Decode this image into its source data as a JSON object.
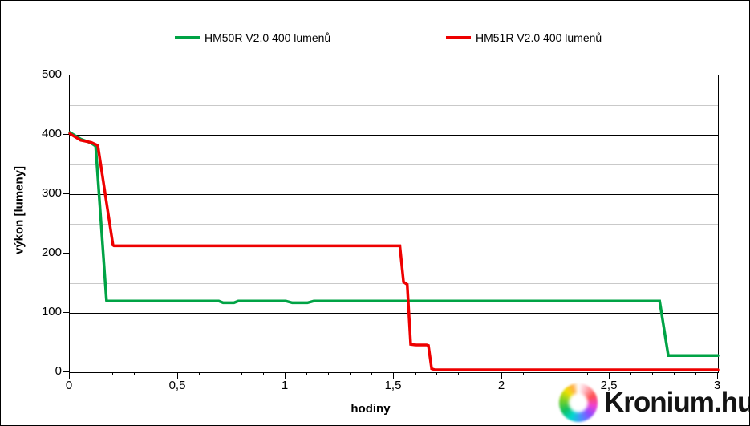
{
  "legend": {
    "items": [
      {
        "label": "HM50R V2.0 400 lumenů",
        "color": "#00a345"
      },
      {
        "label": "HM51R V2.0 400 lumenů",
        "color": "#ee0000"
      }
    ]
  },
  "watermark": {
    "text": "Kronium.hu"
  },
  "chart_data": {
    "type": "line",
    "title": "",
    "xlabel": "hodiny",
    "ylabel": "výkon [lumeny]",
    "xlim": [
      0,
      3
    ],
    "ylim": [
      0,
      500
    ],
    "grid": {
      "major_color": "#000000",
      "minor_color": "#c9c9c9",
      "vertical": false
    },
    "legend_position": "top",
    "x_ticks_major": {
      "values": [
        0,
        0.5,
        1,
        1.5,
        2,
        2.5,
        3
      ],
      "labels": [
        "0",
        "0,5",
        "1",
        "1,5",
        "2",
        "2,5",
        "3"
      ]
    },
    "x_minor_step": 0.1,
    "y_ticks_major": {
      "values": [
        0,
        100,
        200,
        300,
        400,
        500
      ],
      "labels": [
        "0",
        "100",
        "200",
        "300",
        "400",
        "500"
      ]
    },
    "y_minor_step": 50,
    "series": [
      {
        "name": "HM50R V2.0 400 lumenů",
        "color": "#00a345",
        "points": [
          [
            0,
            404
          ],
          [
            0.05,
            393
          ],
          [
            0.1,
            386
          ],
          [
            0.12,
            381
          ],
          [
            0.17,
            121
          ],
          [
            0.175,
            120
          ],
          [
            0.69,
            120
          ],
          [
            0.71,
            117
          ],
          [
            0.76,
            117
          ],
          [
            0.78,
            120
          ],
          [
            1.0,
            120
          ],
          [
            1.03,
            117
          ],
          [
            1.1,
            117
          ],
          [
            1.13,
            120
          ],
          [
            2.73,
            120
          ],
          [
            2.77,
            28
          ],
          [
            3,
            28
          ]
        ]
      },
      {
        "name": "HM51R V2.0 400 lumenů",
        "color": "#ee0000",
        "points": [
          [
            0,
            402
          ],
          [
            0.05,
            391
          ],
          [
            0.1,
            387
          ],
          [
            0.13,
            382
          ],
          [
            0.2,
            214
          ],
          [
            0.205,
            213
          ],
          [
            1.528,
            213
          ],
          [
            1.545,
            152
          ],
          [
            1.562,
            148
          ],
          [
            1.578,
            47
          ],
          [
            1.6,
            46
          ],
          [
            1.652,
            46
          ],
          [
            1.66,
            45
          ],
          [
            1.675,
            6
          ],
          [
            1.69,
            4
          ],
          [
            3,
            4
          ]
        ]
      }
    ]
  }
}
